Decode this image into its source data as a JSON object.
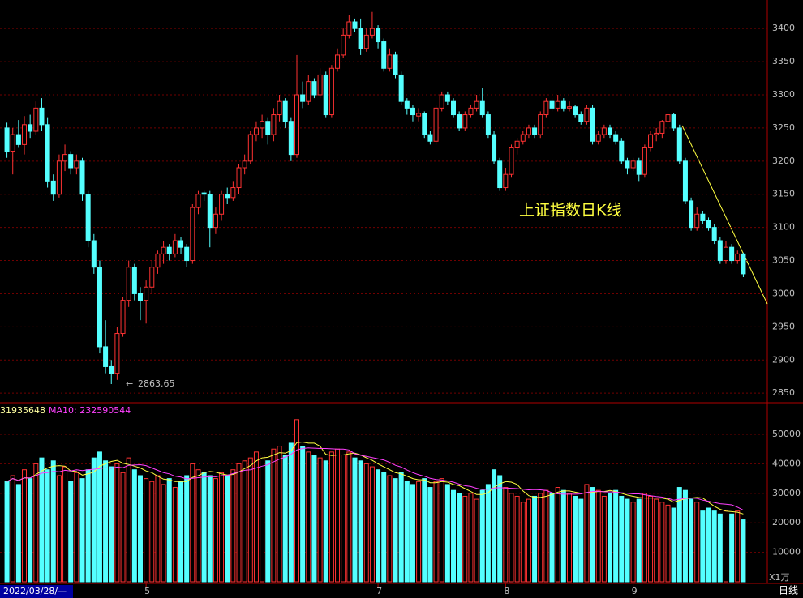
{
  "chart_data": {
    "type": "candlestick",
    "annotation": "上证指数日K线",
    "volume_label": "31935648",
    "ma10_label": "MA10: 232590544",
    "date_label": "2022/03/28/—",
    "period_label": "日线",
    "volume_unit": "X1万",
    "up_color": "#ff3232",
    "down_color": "#54ffff",
    "ma5_color": "#ffff40",
    "ma10_color": "#ff40ff",
    "categories": [
      null,
      null,
      null,
      null,
      null,
      null,
      null,
      null,
      null,
      null,
      null,
      null,
      null,
      null,
      null,
      null,
      null,
      null,
      null,
      null,
      null,
      null,
      null,
      null,
      "5",
      null,
      null,
      null,
      null,
      null,
      null,
      null,
      null,
      null,
      null,
      null,
      null,
      null,
      null,
      null,
      null,
      null,
      null,
      null,
      null,
      null,
      null,
      null,
      null,
      null,
      null,
      null,
      null,
      null,
      null,
      null,
      null,
      null,
      null,
      null,
      null,
      null,
      null,
      null,
      "7",
      null,
      null,
      null,
      null,
      null,
      null,
      null,
      null,
      null,
      null,
      null,
      null,
      null,
      null,
      null,
      null,
      null,
      null,
      null,
      null,
      null,
      "8",
      null,
      null,
      null,
      null,
      null,
      null,
      null,
      null,
      null,
      null,
      null,
      null,
      null,
      null,
      null,
      null,
      null,
      null,
      null,
      null,
      null,
      "9",
      null,
      null,
      null,
      null,
      null,
      null,
      null,
      null,
      null,
      null,
      null,
      null,
      null,
      null,
      null,
      null,
      null,
      null,
      null
    ],
    "ohlc": [
      [
        3250,
        3258,
        3205,
        3215
      ],
      [
        3215,
        3250,
        3180,
        3240
      ],
      [
        3240,
        3262,
        3220,
        3225
      ],
      [
        3225,
        3268,
        3210,
        3255
      ],
      [
        3255,
        3270,
        3235,
        3245
      ],
      [
        3245,
        3290,
        3240,
        3280
      ],
      [
        3280,
        3295,
        3245,
        3255
      ],
      [
        3255,
        3265,
        3160,
        3170
      ],
      [
        3170,
        3180,
        3140,
        3150
      ],
      [
        3150,
        3210,
        3145,
        3200
      ],
      [
        3200,
        3225,
        3185,
        3210
      ],
      [
        3210,
        3215,
        3180,
        3190
      ],
      [
        3190,
        3210,
        3180,
        3200
      ],
      [
        3200,
        3205,
        3140,
        3150
      ],
      [
        3150,
        3155,
        3070,
        3080
      ],
      [
        3080,
        3090,
        3030,
        3040
      ],
      [
        3040,
        3050,
        2910,
        2920
      ],
      [
        2920,
        2960,
        2880,
        2890
      ],
      [
        2890,
        2900,
        2863.65,
        2880
      ],
      [
        2880,
        2950,
        2870,
        2940
      ],
      [
        2940,
        2995,
        2935,
        2990
      ],
      [
        2990,
        3050,
        2980,
        3040
      ],
      [
        3040,
        3045,
        2990,
        3000
      ],
      [
        3000,
        3010,
        2960,
        2990
      ],
      [
        2990,
        3020,
        2955,
        3010
      ],
      [
        3010,
        3050,
        3000,
        3040
      ],
      [
        3040,
        3065,
        3030,
        3060
      ],
      [
        3060,
        3080,
        3045,
        3070
      ],
      [
        3070,
        3075,
        3050,
        3060
      ],
      [
        3060,
        3090,
        3055,
        3080
      ],
      [
        3080,
        3085,
        3060,
        3070
      ],
      [
        3070,
        3075,
        3040,
        3050
      ],
      [
        3050,
        3135,
        3045,
        3130
      ],
      [
        3130,
        3155,
        3120,
        3150
      ],
      [
        3152,
        3155,
        3140,
        3150
      ],
      [
        3150,
        3155,
        3070,
        3100
      ],
      [
        3100,
        3130,
        3090,
        3120
      ],
      [
        3120,
        3155,
        3110,
        3150
      ],
      [
        3150,
        3160,
        3135,
        3145
      ],
      [
        3145,
        3170,
        3140,
        3160
      ],
      [
        3160,
        3195,
        3150,
        3190
      ],
      [
        3190,
        3210,
        3180,
        3200
      ],
      [
        3200,
        3245,
        3195,
        3240
      ],
      [
        3240,
        3260,
        3230,
        3250
      ],
      [
        3250,
        3270,
        3235,
        3260
      ],
      [
        3260,
        3265,
        3225,
        3240
      ],
      [
        3240,
        3280,
        3230,
        3270
      ],
      [
        3270,
        3300,
        3260,
        3290
      ],
      [
        3290,
        3295,
        3250,
        3260
      ],
      [
        3260,
        3265,
        3200,
        3210
      ],
      [
        3210,
        3360,
        3205,
        3300
      ],
      [
        3300,
        3320,
        3280,
        3290
      ],
      [
        3290,
        3330,
        3285,
        3320
      ],
      [
        3320,
        3325,
        3295,
        3300
      ],
      [
        3300,
        3340,
        3295,
        3330
      ],
      [
        3330,
        3335,
        3265,
        3270
      ],
      [
        3270,
        3345,
        3265,
        3340
      ],
      [
        3340,
        3370,
        3335,
        3360
      ],
      [
        3360,
        3400,
        3355,
        3390
      ],
      [
        3390,
        3420,
        3385,
        3410
      ],
      [
        3410,
        3415,
        3395,
        3400
      ],
      [
        3400,
        3415,
        3360,
        3370
      ],
      [
        3370,
        3400,
        3365,
        3390
      ],
      [
        3390,
        3425,
        3385,
        3400
      ],
      [
        3400,
        3405,
        3370,
        3380
      ],
      [
        3380,
        3385,
        3335,
        3340
      ],
      [
        3340,
        3370,
        3335,
        3360
      ],
      [
        3360,
        3365,
        3325,
        3330
      ],
      [
        3330,
        3335,
        3285,
        3290
      ],
      [
        3290,
        3295,
        3270,
        3280
      ],
      [
        3280,
        3285,
        3260,
        3270
      ],
      [
        3268,
        3280,
        3260,
        3272
      ],
      [
        3272,
        3275,
        3235,
        3240
      ],
      [
        3240,
        3245,
        3225,
        3230
      ],
      [
        3230,
        3285,
        3225,
        3280
      ],
      [
        3280,
        3305,
        3275,
        3300
      ],
      [
        3300,
        3305,
        3285,
        3290
      ],
      [
        3290,
        3295,
        3265,
        3270
      ],
      [
        3270,
        3275,
        3245,
        3250
      ],
      [
        3250,
        3275,
        3245,
        3270
      ],
      [
        3270,
        3285,
        3265,
        3280
      ],
      [
        3280,
        3300,
        3275,
        3290
      ],
      [
        3290,
        3310,
        3265,
        3270
      ],
      [
        3270,
        3275,
        3235,
        3240
      ],
      [
        3240,
        3245,
        3195,
        3200
      ],
      [
        3200,
        3205,
        3155,
        3160
      ],
      [
        3160,
        3190,
        3155,
        3180
      ],
      [
        3180,
        3225,
        3175,
        3220
      ],
      [
        3220,
        3235,
        3210,
        3230
      ],
      [
        3230,
        3245,
        3225,
        3240
      ],
      [
        3240,
        3255,
        3235,
        3250
      ],
      [
        3250,
        3255,
        3235,
        3240
      ],
      [
        3240,
        3275,
        3235,
        3270
      ],
      [
        3270,
        3295,
        3265,
        3290
      ],
      [
        3290,
        3295,
        3275,
        3280
      ],
      [
        3280,
        3300,
        3275,
        3290
      ],
      [
        3290,
        3295,
        3275,
        3280
      ],
      [
        3280,
        3290,
        3275,
        3282
      ],
      [
        3282,
        3285,
        3265,
        3270
      ],
      [
        3270,
        3275,
        3255,
        3260
      ],
      [
        3260,
        3285,
        3255,
        3280
      ],
      [
        3280,
        3285,
        3225,
        3230
      ],
      [
        3230,
        3245,
        3225,
        3240
      ],
      [
        3240,
        3255,
        3235,
        3250
      ],
      [
        3250,
        3255,
        3235,
        3240
      ],
      [
        3240,
        3245,
        3225,
        3230
      ],
      [
        3230,
        3235,
        3195,
        3200
      ],
      [
        3200,
        3205,
        3180,
        3190
      ],
      [
        3190,
        3205,
        3185,
        3200
      ],
      [
        3200,
        3205,
        3170,
        3180
      ],
      [
        3180,
        3225,
        3175,
        3220
      ],
      [
        3220,
        3245,
        3215,
        3240
      ],
      [
        3240,
        3250,
        3230,
        3242
      ],
      [
        3242,
        3262,
        3235,
        3260
      ],
      [
        3260,
        3278,
        3255,
        3270
      ],
      [
        3270,
        3272,
        3245,
        3250
      ],
      [
        3250,
        3255,
        3195,
        3200
      ],
      [
        3200,
        3205,
        3135,
        3140
      ],
      [
        3140,
        3145,
        3095,
        3100
      ],
      [
        3100,
        3130,
        3095,
        3120
      ],
      [
        3120,
        3125,
        3105,
        3110
      ],
      [
        3110,
        3115,
        3095,
        3100
      ],
      [
        3100,
        3105,
        3075,
        3080
      ],
      [
        3080,
        3085,
        3045,
        3050
      ],
      [
        3050,
        3080,
        3045,
        3070
      ],
      [
        3070,
        3075,
        3045,
        3050
      ],
      [
        3050,
        3065,
        3045,
        3060
      ],
      [
        3060,
        3062,
        3025,
        3030
      ]
    ],
    "volume": [
      34000,
      36000,
      33000,
      38000,
      35000,
      40000,
      42000,
      38000,
      41000,
      36000,
      39000,
      34000,
      37000,
      35000,
      38000,
      42000,
      44000,
      41000,
      39000,
      40000,
      37000,
      42000,
      38000,
      36000,
      35000,
      34000,
      36000,
      33000,
      35000,
      32000,
      34000,
      36000,
      40000,
      38000,
      37000,
      36000,
      35000,
      37000,
      36000,
      38000,
      40000,
      41000,
      42000,
      44000,
      43000,
      41000,
      45000,
      46000,
      43000,
      47000,
      55000,
      46000,
      44000,
      43000,
      42000,
      41000,
      44000,
      45000,
      43000,
      44000,
      42000,
      41000,
      40000,
      39000,
      38000,
      37000,
      36000,
      35000,
      37000,
      34000,
      33000,
      34000,
      35000,
      32000,
      34000,
      35000,
      33000,
      31000,
      30000,
      29000,
      30000,
      28000,
      31000,
      33000,
      38000,
      36000,
      32000,
      30000,
      29000,
      27000,
      28000,
      29000,
      30000,
      31000,
      30000,
      32000,
      31000,
      30000,
      29000,
      28000,
      33000,
      32000,
      31000,
      29000,
      30000,
      31000,
      29000,
      28000,
      27000,
      28000,
      30000,
      29000,
      28000,
      27000,
      26000,
      25000,
      32000,
      31000,
      28000,
      27000,
      24000,
      25000,
      24000,
      23000,
      24000,
      23000,
      24000,
      21000
    ],
    "ylim": [
      2838,
      3443
    ],
    "yticks": [
      3400,
      3350,
      3300,
      3250,
      3200,
      3150,
      3100,
      3050,
      3000,
      2950,
      2900,
      2850
    ],
    "y2lim": [
      0,
      59900
    ],
    "y2ticks": [
      50000,
      40000,
      30000,
      20000,
      10000
    ],
    "grid": true
  }
}
